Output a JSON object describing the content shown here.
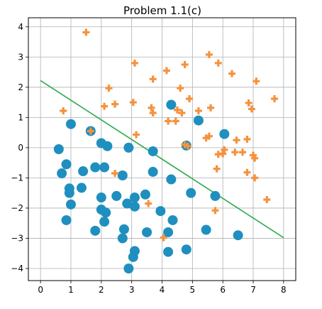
{
  "chart_data": {
    "type": "scatter",
    "title": "Problem 1.1(c)",
    "xlabel": "",
    "ylabel": "",
    "xlim": [
      -0.4,
      8.4
    ],
    "ylim": [
      -4.4,
      4.3
    ],
    "xticks": [
      0,
      1,
      2,
      3,
      4,
      5,
      6,
      7,
      8
    ],
    "yticks": [
      -4,
      -3,
      -2,
      -1,
      0,
      1,
      2,
      3,
      4
    ],
    "xtick_labels": [
      "0",
      "1",
      "2",
      "3",
      "4",
      "5",
      "6",
      "7",
      "8"
    ],
    "ytick_labels": [
      "−4",
      "−3",
      "−2",
      "−1",
      "0",
      "1",
      "2",
      "3",
      "4"
    ],
    "grid": true,
    "colors": {
      "circle": "#1f8fbf",
      "plus": "#f5923e",
      "line": "#2ca94c",
      "grid": "#b0b0b0"
    },
    "series": [
      {
        "marker": "circle",
        "points": [
          [
            0.6,
            -0.05
          ],
          [
            0.85,
            -0.55
          ],
          [
            0.7,
            -0.85
          ],
          [
            0.95,
            -1.35
          ],
          [
            0.95,
            -1.5
          ],
          [
            1.0,
            0.78
          ],
          [
            1.0,
            -1.88
          ],
          [
            0.85,
            -2.4
          ],
          [
            1.35,
            -1.33
          ],
          [
            1.4,
            -0.78
          ],
          [
            1.65,
            0.55
          ],
          [
            1.8,
            -0.65
          ],
          [
            1.8,
            -2.75
          ],
          [
            2.0,
            0.15
          ],
          [
            2.0,
            -1.65
          ],
          [
            2.0,
            -2.05
          ],
          [
            2.1,
            -0.65
          ],
          [
            2.15,
            -2.15
          ],
          [
            2.1,
            -2.45
          ],
          [
            2.2,
            0.05
          ],
          [
            2.5,
            -1.6
          ],
          [
            2.7,
            -0.92
          ],
          [
            2.7,
            -3.0
          ],
          [
            2.75,
            -2.7
          ],
          [
            2.85,
            -1.85
          ],
          [
            2.9,
            0.0
          ],
          [
            2.9,
            -4.0
          ],
          [
            3.05,
            -3.62
          ],
          [
            3.1,
            -1.65
          ],
          [
            3.1,
            -1.95
          ],
          [
            3.1,
            -3.42
          ],
          [
            3.45,
            -1.55
          ],
          [
            3.5,
            -2.8
          ],
          [
            3.7,
            -0.12
          ],
          [
            3.7,
            -0.8
          ],
          [
            3.95,
            -2.1
          ],
          [
            4.2,
            -2.8
          ],
          [
            4.2,
            -3.45
          ],
          [
            4.3,
            1.42
          ],
          [
            4.3,
            -1.05
          ],
          [
            4.35,
            -2.4
          ],
          [
            4.8,
            0.07
          ],
          [
            4.8,
            -3.37
          ],
          [
            4.95,
            -1.5
          ],
          [
            5.2,
            0.9
          ],
          [
            5.45,
            -2.72
          ],
          [
            5.75,
            -1.6
          ],
          [
            6.05,
            0.45
          ],
          [
            6.5,
            -2.9
          ]
        ]
      },
      {
        "marker": "plus",
        "points": [
          [
            0.75,
            1.22
          ],
          [
            1.5,
            3.82
          ],
          [
            1.65,
            0.55
          ],
          [
            2.1,
            1.37
          ],
          [
            2.25,
            1.97
          ],
          [
            2.45,
            1.44
          ],
          [
            2.45,
            -0.85
          ],
          [
            3.05,
            1.5
          ],
          [
            3.1,
            2.8
          ],
          [
            3.15,
            0.43
          ],
          [
            3.55,
            -1.85
          ],
          [
            3.65,
            1.32
          ],
          [
            3.7,
            1.15
          ],
          [
            3.7,
            2.27
          ],
          [
            4.05,
            -2.98
          ],
          [
            4.15,
            2.55
          ],
          [
            4.2,
            0.88
          ],
          [
            4.45,
            0.88
          ],
          [
            4.5,
            1.25
          ],
          [
            4.6,
            1.97
          ],
          [
            4.65,
            1.15
          ],
          [
            4.75,
            2.75
          ],
          [
            4.75,
            0.1
          ],
          [
            4.9,
            1.62
          ],
          [
            4.85,
            0.05
          ],
          [
            5.2,
            1.22
          ],
          [
            5.45,
            0.32
          ],
          [
            5.55,
            0.38
          ],
          [
            5.55,
            3.08
          ],
          [
            5.6,
            1.32
          ],
          [
            5.75,
            -2.08
          ],
          [
            5.8,
            -0.7
          ],
          [
            5.85,
            -0.22
          ],
          [
            5.85,
            2.8
          ],
          [
            6.0,
            -0.2
          ],
          [
            6.05,
            -0.07
          ],
          [
            6.3,
            2.45
          ],
          [
            6.4,
            -0.15
          ],
          [
            6.45,
            0.25
          ],
          [
            6.65,
            -0.15
          ],
          [
            6.8,
            0.28
          ],
          [
            6.8,
            -0.82
          ],
          [
            6.85,
            1.48
          ],
          [
            6.95,
            1.28
          ],
          [
            7.0,
            -0.25
          ],
          [
            7.05,
            -0.35
          ],
          [
            7.05,
            -1.0
          ],
          [
            7.1,
            2.2
          ],
          [
            7.45,
            -1.72
          ],
          [
            7.7,
            1.62
          ]
        ]
      }
    ],
    "lines": [
      {
        "x": [
          0,
          8
        ],
        "y": [
          2.22,
          -2.98
        ]
      }
    ]
  }
}
